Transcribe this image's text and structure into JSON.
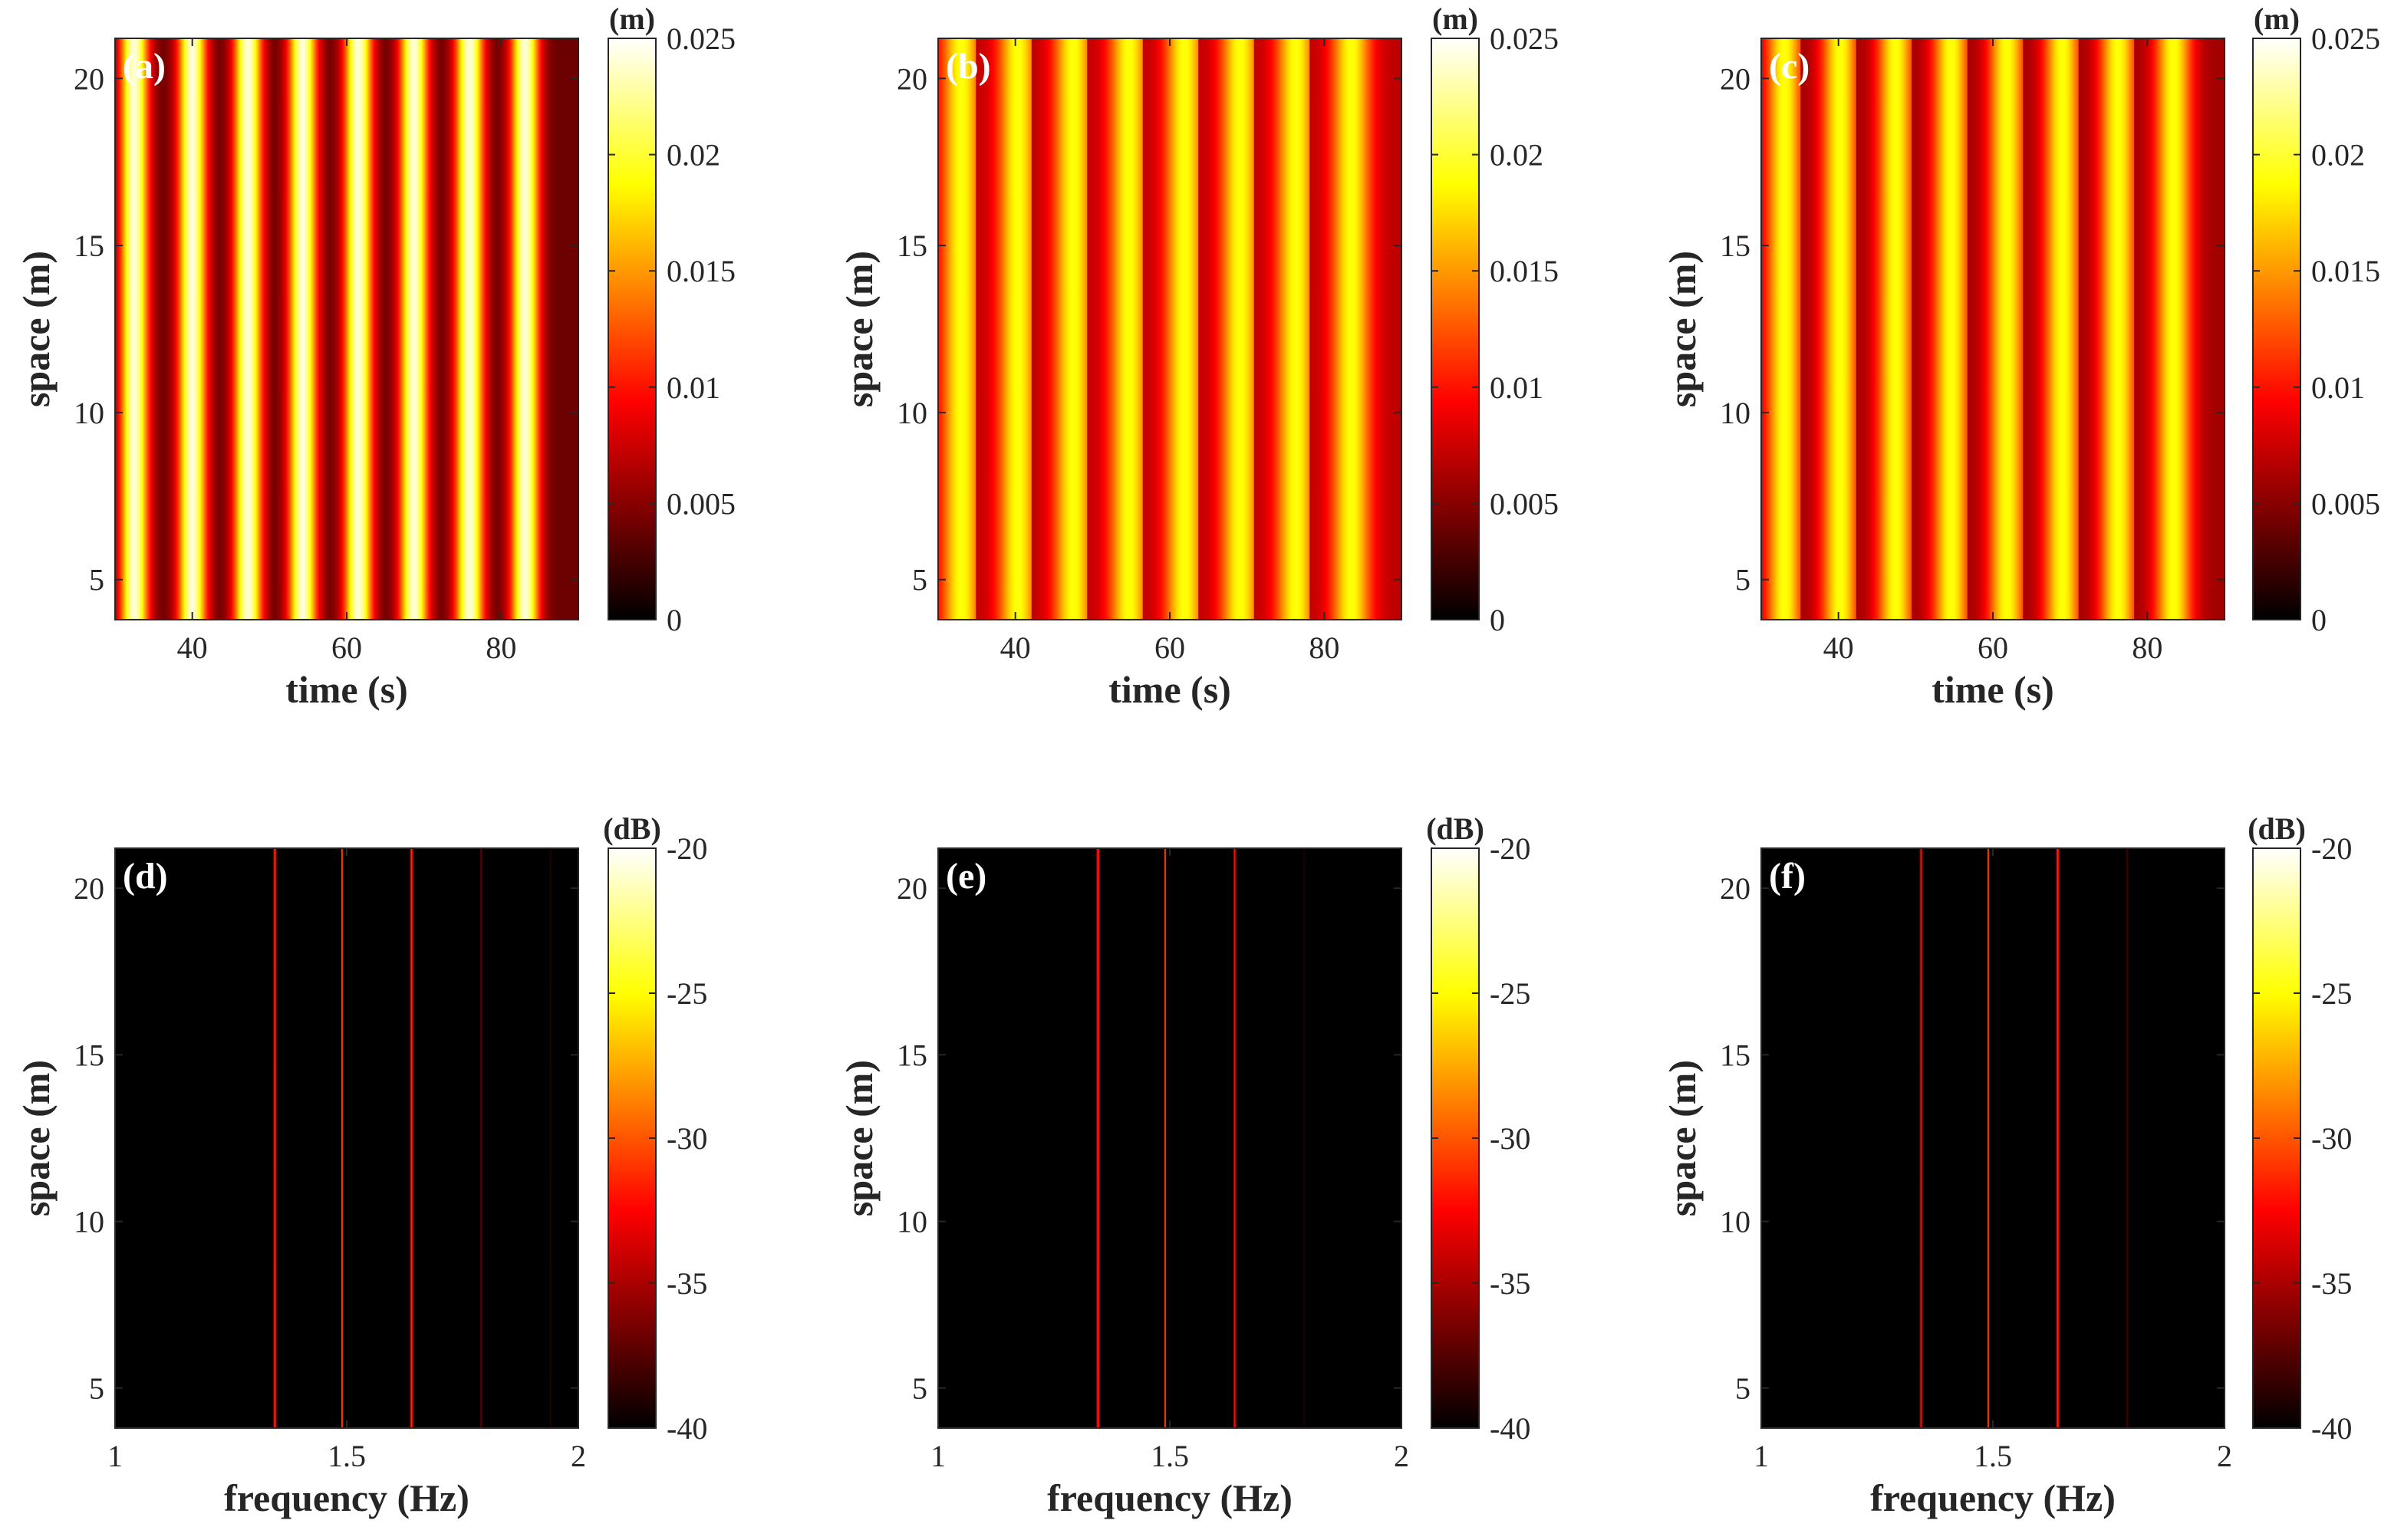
{
  "chart_data": [
    {
      "type": "heatmap",
      "panel_label": "(a)",
      "xlabel": "time (s)",
      "ylabel": "space (m)",
      "xlim": [
        30,
        90
      ],
      "ylim": [
        3.8,
        21.2
      ],
      "xticks": [
        40,
        60,
        80
      ],
      "yticks": [
        5,
        10,
        15,
        20
      ],
      "colorbar": {
        "unit": "(m)",
        "range": [
          0,
          0.025
        ],
        "ticks": [
          "0",
          "0.005",
          "0.01",
          "0.015",
          "0.02",
          "0.025"
        ],
        "tick_values": [
          0,
          0.005,
          0.01,
          0.015,
          0.02,
          0.025
        ]
      },
      "band_centers": [
        32.5,
        40.0,
        47.2,
        54.3,
        61.5,
        68.7,
        75.9,
        83.1
      ],
      "band_peak": 0.024,
      "band_width": 1.3,
      "background_level": 0.004
    },
    {
      "type": "heatmap",
      "panel_label": "(b)",
      "xlabel": "time (s)",
      "ylabel": "space (m)",
      "xlim": [
        30,
        90
      ],
      "ylim": [
        3.8,
        21.2
      ],
      "xticks": [
        40,
        60,
        80
      ],
      "yticks": [
        5,
        10,
        15,
        20
      ],
      "colorbar": {
        "unit": "(m)",
        "range": [
          0,
          0.025
        ],
        "ticks": [
          "0",
          "0.005",
          "0.01",
          "0.015",
          "0.02",
          "0.025"
        ],
        "tick_values": [
          0,
          0.005,
          0.01,
          0.015,
          0.02,
          0.025
        ]
      },
      "band_centers": [
        33.0,
        40.3,
        47.5,
        54.7,
        61.9,
        69.1,
        76.3,
        83.5
      ],
      "band_peak": 0.019,
      "band_width": 1.8,
      "background_level": 0.007
    },
    {
      "type": "heatmap",
      "panel_label": "(c)",
      "xlabel": "time (s)",
      "ylabel": "space (m)",
      "xlim": [
        30,
        90
      ],
      "ylim": [
        3.8,
        21.2
      ],
      "xticks": [
        40,
        60,
        80
      ],
      "yticks": [
        5,
        10,
        15,
        20
      ],
      "colorbar": {
        "unit": "(m)",
        "range": [
          0,
          0.025
        ],
        "ticks": [
          "0",
          "0.005",
          "0.01",
          "0.015",
          "0.02",
          "0.025"
        ],
        "tick_values": [
          0,
          0.005,
          0.01,
          0.015,
          0.02,
          0.025
        ]
      },
      "band_centers": [
        33.0,
        40.2,
        47.4,
        54.6,
        61.8,
        69.0,
        76.2,
        83.4
      ],
      "band_peak": 0.019,
      "band_width": 1.7,
      "background_level": 0.006
    },
    {
      "type": "heatmap",
      "panel_label": "(d)",
      "xlabel": "frequency (Hz)",
      "ylabel": "space (m)",
      "xlim": [
        1,
        2
      ],
      "ylim": [
        3.8,
        21.2
      ],
      "xticks": [
        1,
        1.5,
        2
      ],
      "yticks": [
        5,
        10,
        15,
        20
      ],
      "colorbar": {
        "unit": "(dB)",
        "range": [
          -40,
          -20
        ],
        "ticks": [
          "-40",
          "-35",
          "-30",
          "-25",
          "-20"
        ],
        "tick_values": [
          -40,
          -35,
          -30,
          -25,
          -20
        ]
      },
      "lines": [
        {
          "freq": 1.345,
          "level": -31,
          "width": 0.006
        },
        {
          "freq": 1.49,
          "level": -28,
          "width": 0.003
        },
        {
          "freq": 1.64,
          "level": -31,
          "width": 0.006
        },
        {
          "freq": 1.79,
          "level": -37,
          "width": 0.004
        },
        {
          "freq": 1.94,
          "level": -39,
          "width": 0.004
        }
      ]
    },
    {
      "type": "heatmap",
      "panel_label": "(e)",
      "xlabel": "frequency (Hz)",
      "ylabel": "space (m)",
      "xlim": [
        1,
        2
      ],
      "ylim": [
        3.8,
        21.2
      ],
      "xticks": [
        1,
        1.5,
        2
      ],
      "yticks": [
        5,
        10,
        15,
        20
      ],
      "colorbar": {
        "unit": "(dB)",
        "range": [
          -40,
          -20
        ],
        "ticks": [
          "-40",
          "-35",
          "-30",
          "-25",
          "-20"
        ],
        "tick_values": [
          -40,
          -35,
          -30,
          -25,
          -20
        ]
      },
      "lines": [
        {
          "freq": 1.345,
          "level": -31,
          "width": 0.006
        },
        {
          "freq": 1.49,
          "level": -28,
          "width": 0.003
        },
        {
          "freq": 1.64,
          "level": -32,
          "width": 0.005
        },
        {
          "freq": 1.79,
          "level": -39,
          "width": 0.003
        }
      ]
    },
    {
      "type": "heatmap",
      "panel_label": "(f)",
      "xlabel": "frequency (Hz)",
      "ylabel": "space (m)",
      "xlim": [
        1,
        2
      ],
      "ylim": [
        3.8,
        21.2
      ],
      "xticks": [
        1,
        1.5,
        2
      ],
      "yticks": [
        5,
        10,
        15,
        20
      ],
      "colorbar": {
        "unit": "(dB)",
        "range": [
          -40,
          -20
        ],
        "ticks": [
          "-40",
          "-35",
          "-30",
          "-25",
          "-20"
        ],
        "tick_values": [
          -40,
          -35,
          -30,
          -25,
          -20
        ]
      },
      "lines": [
        {
          "freq": 1.345,
          "level": -32,
          "width": 0.005
        },
        {
          "freq": 1.49,
          "level": -28,
          "width": 0.003
        },
        {
          "freq": 1.64,
          "level": -31,
          "width": 0.006
        },
        {
          "freq": 1.79,
          "level": -38,
          "width": 0.004
        }
      ]
    }
  ]
}
